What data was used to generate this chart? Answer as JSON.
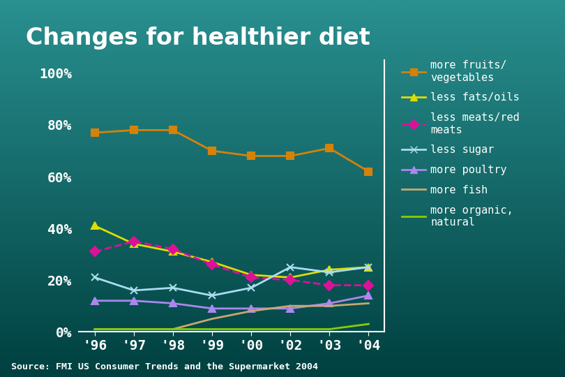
{
  "title": "Changes for healthier diet",
  "source": "Source: FMI US Consumer Trends and the Supermarket 2004",
  "years": [
    "'96",
    "'97",
    "'98",
    "'99",
    "'00",
    "'02",
    "'03",
    "'04"
  ],
  "x_values": [
    0,
    1,
    2,
    3,
    4,
    5,
    6,
    7
  ],
  "series": [
    {
      "label": "more fruits/\nvegetables",
      "color": "#D4820A",
      "marker": "s",
      "linestyle": "-",
      "values": [
        77,
        78,
        78,
        70,
        68,
        68,
        71,
        62
      ]
    },
    {
      "label": "less fats/oils",
      "color": "#DDDD00",
      "marker": "^",
      "linestyle": "-",
      "values": [
        41,
        34,
        31,
        27,
        22,
        21,
        24,
        25
      ]
    },
    {
      "label": "less meats/red\nmeats",
      "color": "#DD1199",
      "marker": "D",
      "linestyle": "--",
      "values": [
        31,
        35,
        32,
        26,
        21,
        20,
        18,
        18
      ]
    },
    {
      "label": "less sugar",
      "color": "#AADDEE",
      "marker": "x",
      "linestyle": "-",
      "values": [
        21,
        16,
        17,
        14,
        17,
        25,
        23,
        25
      ]
    },
    {
      "label": "more poultry",
      "color": "#AA88EE",
      "marker": "^",
      "linestyle": "-",
      "values": [
        12,
        12,
        11,
        9,
        9,
        9,
        11,
        14
      ]
    },
    {
      "label": "more fish",
      "color": "#C8A870",
      "marker": "",
      "linestyle": "-",
      "values": [
        1,
        1,
        1,
        5,
        8,
        10,
        10,
        11
      ]
    },
    {
      "label": "more organic,\nnatural",
      "color": "#88CC00",
      "marker": "",
      "linestyle": "-",
      "values": [
        1,
        1,
        1,
        1,
        1,
        1,
        1,
        3
      ]
    }
  ],
  "bg_color_top": "#2A9090",
  "bg_color_bottom": "#004040",
  "text_color": "#FFFFFF",
  "title_color": "#FFFFFF",
  "axis_color": "#FFFFFF",
  "ylim": [
    0,
    105
  ],
  "yticks": [
    0,
    20,
    40,
    60,
    80,
    100
  ],
  "ytick_labels": [
    "0%",
    "20%",
    "40%",
    "60%",
    "80%",
    "100%"
  ],
  "legend_fontsize": 11,
  "title_fontsize": 24,
  "tick_fontsize": 14
}
